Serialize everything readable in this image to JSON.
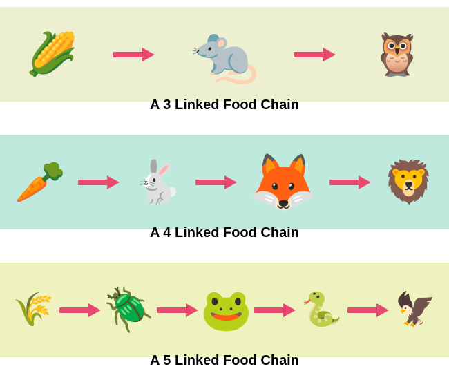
{
  "arrow": {
    "color": "#e84a6f",
    "width": 60,
    "height": 24,
    "stroke_width": 8
  },
  "chains": [
    {
      "background_color": "#ecf0d0",
      "caption": "A 3 Linked Food Chain",
      "nodes": [
        {
          "name": "corn",
          "glyph": "🌽",
          "size": "normal"
        },
        {
          "name": "mouse",
          "glyph": "🐀",
          "size": "big"
        },
        {
          "name": "owl",
          "glyph": "🦉",
          "size": "normal"
        }
      ]
    },
    {
      "background_color": "#bfe9dc",
      "caption": "A 4 Linked Food Chain",
      "nodes": [
        {
          "name": "carrot",
          "glyph": "🥕",
          "size": "normal"
        },
        {
          "name": "rabbit",
          "glyph": "🐇",
          "size": "normal"
        },
        {
          "name": "fox",
          "glyph": "🦊",
          "size": "big"
        },
        {
          "name": "lion",
          "glyph": "🦁",
          "size": "normal"
        }
      ]
    },
    {
      "background_color": "#eef2be",
      "caption": "A 5 Linked Food Chain",
      "nodes": [
        {
          "name": "grass",
          "glyph": "🌾",
          "size": "small"
        },
        {
          "name": "beetle",
          "glyph": "🪲",
          "size": "normal"
        },
        {
          "name": "frog",
          "glyph": "🐸",
          "size": "normal"
        },
        {
          "name": "snake",
          "glyph": "🐍",
          "size": "small"
        },
        {
          "name": "eagle",
          "glyph": "🦅",
          "size": "small"
        }
      ]
    }
  ]
}
